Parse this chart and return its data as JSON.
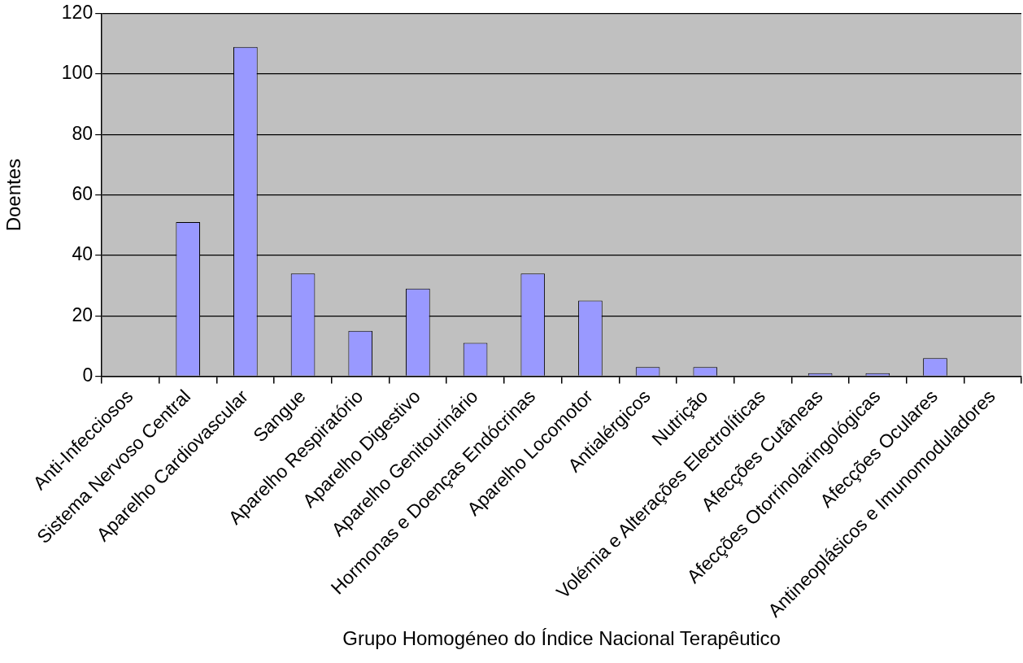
{
  "chart_data": {
    "type": "bar",
    "xlabel": "Grupo Homogéneo do Índice Nacional Terapêutico",
    "ylabel": "Doentes",
    "categories": [
      "Anti-Infecciosos",
      "Sistema Nervoso Central",
      "Aparelho Cardiovascular",
      "Sangue",
      "Aparelho Respiratório",
      "Aparelho Digestivo",
      "Aparelho Genitourinário",
      "Hormonas e Doenças Endócrinas",
      "Aparelho Locomotor",
      "Antialérgicos",
      "Nutrição",
      "Volémia e Alterações Electrolíticas",
      "Afecções Cutâneas",
      "Afecções Otorrinolaringológicas",
      "Afecções Oculares",
      "Antineoplásicos e Imunomoduladores"
    ],
    "values": [
      0,
      51,
      109,
      34,
      15,
      29,
      11,
      34,
      25,
      3,
      3,
      0,
      1,
      1,
      6,
      0
    ],
    "color": "#9999ff",
    "ylim": [
      0,
      120
    ],
    "yticks": [
      0,
      20,
      40,
      60,
      80,
      100,
      120
    ],
    "grid": "y",
    "legend": false
  }
}
